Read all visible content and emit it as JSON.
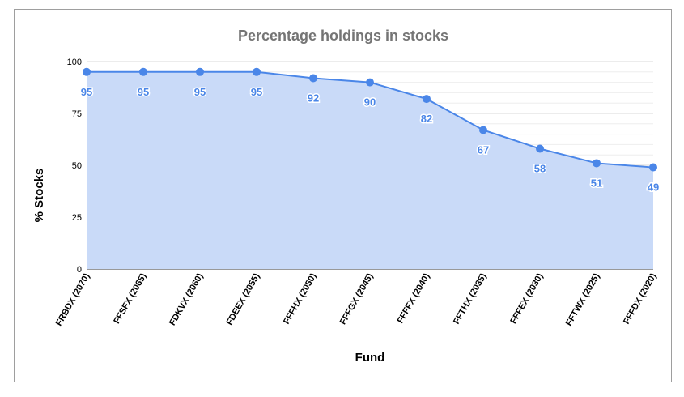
{
  "chart_data": {
    "type": "area",
    "title": "Percentage holdings in stocks",
    "xlabel": "Fund",
    "ylabel": "% Stocks",
    "categories": [
      "FRBDX (2070)",
      "FFSFX (2065)",
      "FDKVX (2060)",
      "FDEEX (2055)",
      "FFFHX (2050)",
      "FFFGX (2045)",
      "FFFFX (2040)",
      "FFTHX (2035)",
      "FFFEX (2030)",
      "FFTWX (2025)",
      "FFFDX (2020)"
    ],
    "series": [
      {
        "values": [
          95,
          95,
          95,
          95,
          92,
          90,
          82,
          67,
          58,
          51,
          49
        ]
      }
    ],
    "ylim": [
      0,
      100
    ],
    "yticks": [
      0,
      25,
      50,
      75,
      100
    ],
    "grid": true,
    "colors": {
      "line": "#4a86e8",
      "fill": "#c9daf8",
      "grid_major": "#d9d9d9",
      "grid_minor": "#eeeeee",
      "title": "#757575"
    }
  }
}
